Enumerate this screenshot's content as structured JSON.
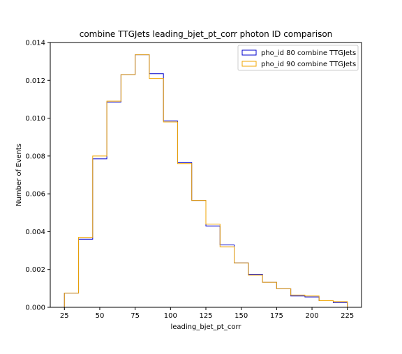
{
  "chart_data": {
    "type": "line",
    "drawstyle": "histogram-step",
    "title": "combine TTGJets leading_bjet_pt_corr photon ID comparison",
    "xlabel": "leading_bjet_pt_corr",
    "ylabel": "Number of Events",
    "xlim": [
      15,
      235
    ],
    "ylim": [
      0,
      0.014
    ],
    "x_ticks": [
      25,
      50,
      75,
      100,
      125,
      150,
      175,
      200,
      225
    ],
    "y_ticks": [
      0.0,
      0.002,
      0.004,
      0.006,
      0.008,
      0.01,
      0.012,
      0.014
    ],
    "y_tick_labels": [
      "0.000",
      "0.002",
      "0.004",
      "0.006",
      "0.008",
      "0.010",
      "0.012",
      "0.014"
    ],
    "bin_edges": [
      25,
      35,
      45,
      55,
      65,
      75,
      85,
      95,
      105,
      115,
      125,
      135,
      145,
      155,
      165,
      175,
      185,
      195,
      205,
      215,
      225
    ],
    "legend_position": "upper right",
    "grid": false,
    "series": [
      {
        "name": "pho_id 80 combine TTGJets",
        "color": "#0000cc",
        "values": [
          0.00075,
          0.0036,
          0.00785,
          0.01085,
          0.0123,
          0.01335,
          0.01235,
          0.00985,
          0.00765,
          0.00565,
          0.0043,
          0.0033,
          0.00235,
          0.00175,
          0.00132,
          0.00098,
          0.0006,
          0.00055,
          0.00035,
          0.00025
        ]
      },
      {
        "name": "pho_id 90 combine TTGJets",
        "color": "#f0a500",
        "values": [
          0.00075,
          0.0037,
          0.008,
          0.0109,
          0.0123,
          0.01335,
          0.0121,
          0.0098,
          0.0076,
          0.00565,
          0.0044,
          0.0032,
          0.00235,
          0.0017,
          0.00132,
          0.00098,
          0.00065,
          0.0006,
          0.00035,
          0.0003
        ]
      }
    ]
  }
}
